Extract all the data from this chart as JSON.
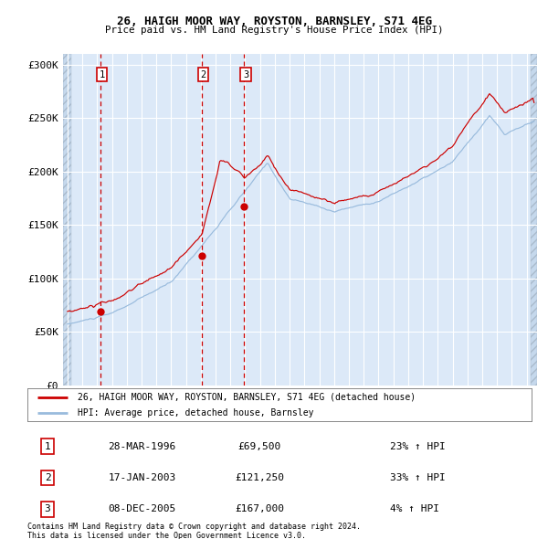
{
  "title1": "26, HAIGH MOOR WAY, ROYSTON, BARNSLEY, S71 4EG",
  "title2": "Price paid vs. HM Land Registry's House Price Index (HPI)",
  "plot_bg": "#dce9f8",
  "hatch_bg": "#c5d8ec",
  "red_line_color": "#cc0000",
  "blue_line_color": "#99bbdd",
  "vline_color": "#cc0000",
  "ylim": [
    0,
    310000
  ],
  "yticks": [
    0,
    50000,
    100000,
    150000,
    200000,
    250000,
    300000
  ],
  "ytick_labels": [
    "£0",
    "£50K",
    "£100K",
    "£150K",
    "£200K",
    "£250K",
    "£300K"
  ],
  "xstart": 1993.7,
  "xend": 2025.7,
  "sales": [
    {
      "date_year": 1996.23,
      "price": 69500,
      "label": "1"
    },
    {
      "date_year": 2003.05,
      "price": 121250,
      "label": "2"
    },
    {
      "date_year": 2005.93,
      "price": 167000,
      "label": "3"
    }
  ],
  "sale_table": [
    {
      "num": "1",
      "date": "28-MAR-1996",
      "price": "£69,500",
      "hpi": "23% ↑ HPI"
    },
    {
      "num": "2",
      "date": "17-JAN-2003",
      "price": "£121,250",
      "hpi": "33% ↑ HPI"
    },
    {
      "num": "3",
      "date": "08-DEC-2005",
      "price": "£167,000",
      "hpi": "4% ↑ HPI"
    }
  ],
  "legend1": "26, HAIGH MOOR WAY, ROYSTON, BARNSLEY, S71 4EG (detached house)",
  "legend2": "HPI: Average price, detached house, Barnsley",
  "footnote1": "Contains HM Land Registry data © Crown copyright and database right 2024.",
  "footnote2": "This data is licensed under the Open Government Licence v3.0."
}
